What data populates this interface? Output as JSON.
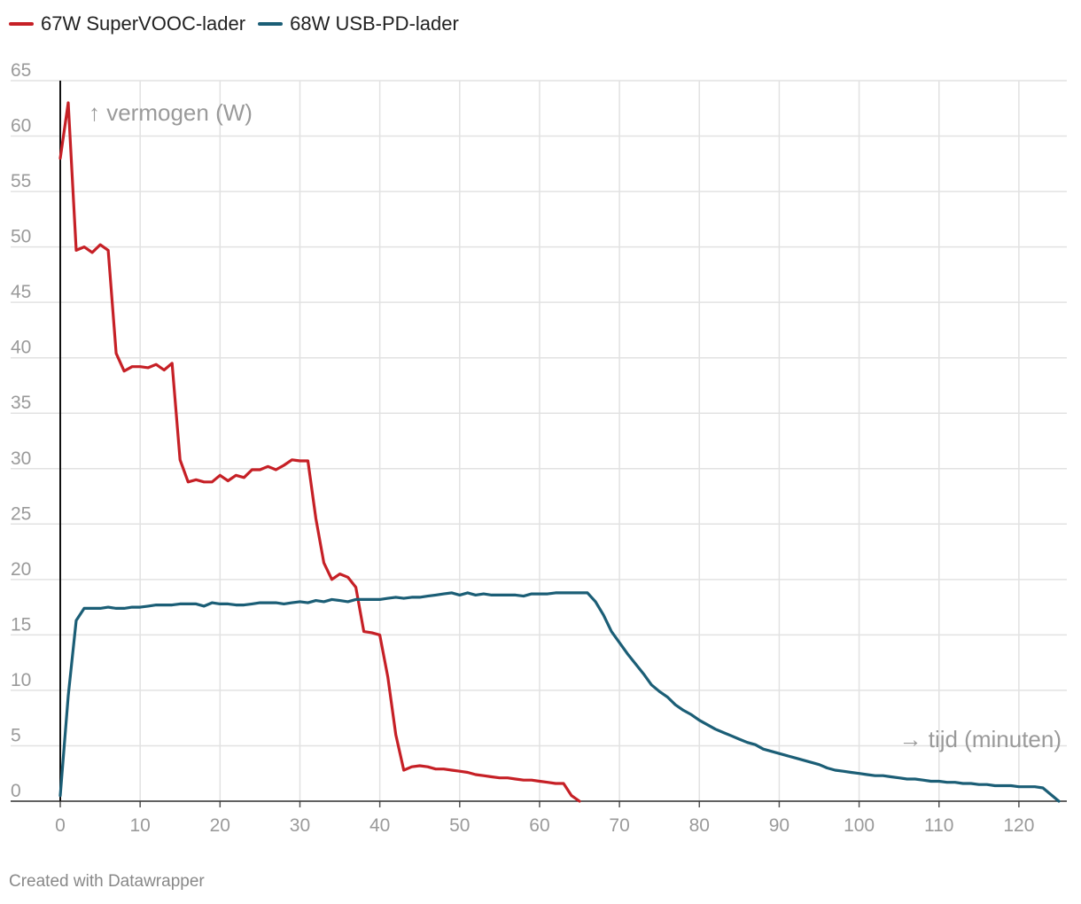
{
  "legend": [
    {
      "name": "67W SuperVOOC-lader",
      "color": "#c62026"
    },
    {
      "name": "68W USB-PD-lader",
      "color": "#1b5e76"
    }
  ],
  "footer": "Created with Datawrapper",
  "chart_data": {
    "type": "line",
    "title": "",
    "ylabel": "↑ vermogen (W)",
    "xlabel": "→ tijd (minuten)",
    "xlim": [
      0,
      126
    ],
    "ylim": [
      0,
      65
    ],
    "xticks": [
      0,
      10,
      20,
      30,
      40,
      50,
      60,
      70,
      80,
      90,
      100,
      110,
      120
    ],
    "yticks": [
      0,
      5,
      10,
      15,
      20,
      25,
      30,
      35,
      40,
      45,
      50,
      55,
      60,
      65
    ],
    "grid": true,
    "legend_position": "top-left",
    "series": [
      {
        "name": "67W SuperVOOC-lader",
        "color": "#c62026",
        "x": [
          0,
          1,
          2,
          3,
          4,
          5,
          6,
          7,
          8,
          9,
          10,
          11,
          12,
          13,
          14,
          15,
          16,
          17,
          18,
          19,
          20,
          21,
          22,
          23,
          24,
          25,
          26,
          27,
          28,
          29,
          30,
          31,
          32,
          33,
          34,
          35,
          36,
          37,
          38,
          39,
          40,
          41,
          42,
          43,
          44,
          45,
          46,
          47,
          48,
          49,
          50,
          51,
          52,
          53,
          54,
          55,
          56,
          57,
          58,
          59,
          60,
          61,
          62,
          63,
          64,
          65
        ],
        "y": [
          58,
          63,
          49.7,
          50,
          49.5,
          50.2,
          49.7,
          40.4,
          38.8,
          39.2,
          39.2,
          39.1,
          39.4,
          38.9,
          39.5,
          30.8,
          28.8,
          29.0,
          28.8,
          28.8,
          29.4,
          28.9,
          29.4,
          29.2,
          29.9,
          29.9,
          30.2,
          29.9,
          30.3,
          30.8,
          30.7,
          30.7,
          25.5,
          21.5,
          20.0,
          20.5,
          20.2,
          19.3,
          15.3,
          15.2,
          15.0,
          11.2,
          6.0,
          2.8,
          3.1,
          3.2,
          3.1,
          2.9,
          2.9,
          2.8,
          2.7,
          2.6,
          2.4,
          2.3,
          2.2,
          2.1,
          2.1,
          2.0,
          1.9,
          1.9,
          1.8,
          1.7,
          1.6,
          1.6,
          0.5,
          0
        ]
      },
      {
        "name": "68W USB-PD-lader",
        "color": "#1b5e76",
        "x": [
          0,
          1,
          2,
          3,
          4,
          5,
          6,
          7,
          8,
          9,
          10,
          11,
          12,
          13,
          14,
          15,
          16,
          17,
          18,
          19,
          20,
          21,
          22,
          23,
          24,
          25,
          26,
          27,
          28,
          29,
          30,
          31,
          32,
          33,
          34,
          35,
          36,
          37,
          38,
          39,
          40,
          41,
          42,
          43,
          44,
          45,
          46,
          47,
          48,
          49,
          50,
          51,
          52,
          53,
          54,
          55,
          56,
          57,
          58,
          59,
          60,
          61,
          62,
          63,
          64,
          65,
          66,
          67,
          68,
          69,
          70,
          71,
          72,
          73,
          74,
          75,
          76,
          77,
          78,
          79,
          80,
          81,
          82,
          83,
          84,
          85,
          86,
          87,
          88,
          89,
          90,
          91,
          92,
          93,
          94,
          95,
          96,
          97,
          98,
          99,
          100,
          101,
          102,
          103,
          104,
          105,
          106,
          107,
          108,
          109,
          110,
          111,
          112,
          113,
          114,
          115,
          116,
          117,
          118,
          119,
          120,
          121,
          122,
          123,
          124,
          125
        ],
        "y": [
          0.5,
          9.5,
          16.3,
          17.4,
          17.4,
          17.4,
          17.5,
          17.4,
          17.4,
          17.5,
          17.5,
          17.6,
          17.7,
          17.7,
          17.7,
          17.8,
          17.8,
          17.8,
          17.6,
          17.9,
          17.8,
          17.8,
          17.7,
          17.7,
          17.8,
          17.9,
          17.9,
          17.9,
          17.8,
          17.9,
          18.0,
          17.9,
          18.1,
          18.0,
          18.2,
          18.1,
          18.0,
          18.2,
          18.2,
          18.2,
          18.2,
          18.3,
          18.4,
          18.3,
          18.4,
          18.4,
          18.5,
          18.6,
          18.7,
          18.8,
          18.6,
          18.8,
          18.6,
          18.7,
          18.6,
          18.6,
          18.6,
          18.6,
          18.5,
          18.7,
          18.7,
          18.7,
          18.8,
          18.8,
          18.8,
          18.8,
          18.8,
          18.0,
          16.8,
          15.3,
          14.3,
          13.3,
          12.4,
          11.5,
          10.5,
          9.9,
          9.4,
          8.7,
          8.2,
          7.8,
          7.3,
          6.9,
          6.5,
          6.2,
          5.9,
          5.6,
          5.3,
          5.1,
          4.7,
          4.5,
          4.3,
          4.1,
          3.9,
          3.7,
          3.5,
          3.3,
          3.0,
          2.8,
          2.7,
          2.6,
          2.5,
          2.4,
          2.3,
          2.3,
          2.2,
          2.1,
          2.0,
          2.0,
          1.9,
          1.8,
          1.8,
          1.7,
          1.7,
          1.6,
          1.6,
          1.5,
          1.5,
          1.4,
          1.4,
          1.4,
          1.3,
          1.3,
          1.3,
          1.2,
          0.6,
          0
        ]
      }
    ]
  }
}
